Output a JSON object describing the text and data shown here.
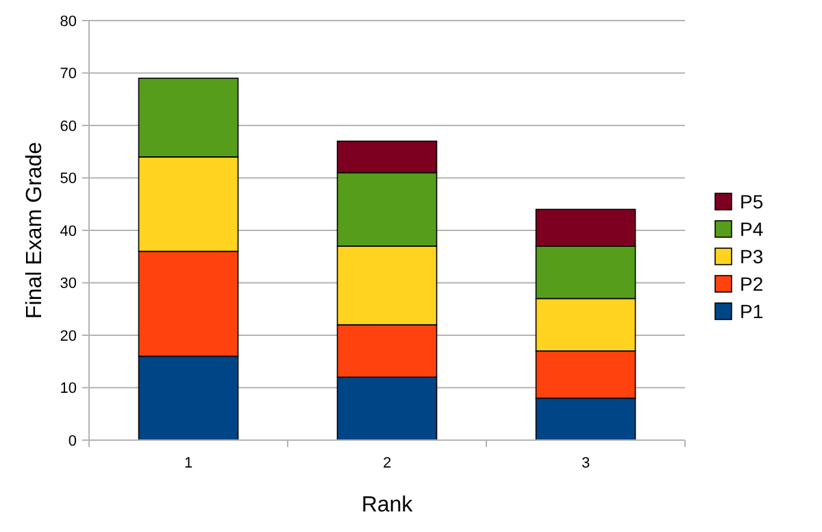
{
  "chart_data": {
    "type": "bar",
    "xlabel": "Rank",
    "ylabel": "Final Exam Grade",
    "categories": [
      "1",
      "2",
      "3"
    ],
    "stacked": true,
    "ylim": [
      0,
      80
    ],
    "yticks": [
      0,
      10,
      20,
      30,
      40,
      50,
      60,
      70,
      80
    ],
    "grid": "y",
    "legend": "right",
    "series": [
      {
        "name": "P1",
        "color": "#004586",
        "values": [
          16,
          12,
          8
        ]
      },
      {
        "name": "P2",
        "color": "#ff420e",
        "values": [
          20,
          10,
          9
        ]
      },
      {
        "name": "P3",
        "color": "#ffd320",
        "values": [
          18,
          15,
          10
        ]
      },
      {
        "name": "P4",
        "color": "#579d1c",
        "values": [
          15,
          14,
          10
        ]
      },
      {
        "name": "P5",
        "color": "#7e0021",
        "values": [
          0,
          6,
          7
        ]
      }
    ]
  }
}
